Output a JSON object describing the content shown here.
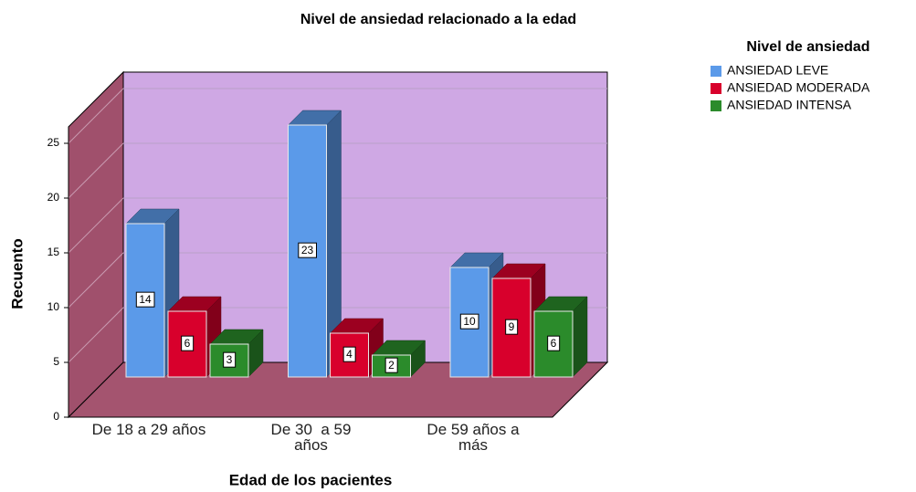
{
  "chart_data": {
    "type": "bar3d",
    "title": "Nivel de ansiedad relacionado a la edad",
    "x_label": "Edad de los pacientes",
    "y_label": "Recuento",
    "legend_title": "Nivel de ansiedad",
    "categories": [
      "De 18 a 29 años",
      "De 30  a 59\naños",
      "De 59 años a\nmás"
    ],
    "series": [
      {
        "name": "ANSIEDAD LEVE",
        "color": "#5b9ae9",
        "values": [
          14,
          23,
          10
        ]
      },
      {
        "name": "ANSIEDAD MODERADA",
        "color": "#d8002c",
        "values": [
          6,
          4,
          9
        ]
      },
      {
        "name": "ANSIEDAD INTENSA",
        "color": "#2b8b2b",
        "values": [
          3,
          2,
          6
        ]
      }
    ],
    "ylim": [
      0,
      26.5
    ],
    "yticks": [
      0,
      5,
      10,
      15,
      20,
      25
    ],
    "grid": true
  }
}
